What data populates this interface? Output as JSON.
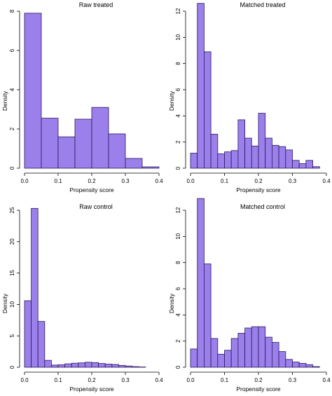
{
  "colors": {
    "bar_fill": "#9b7fea",
    "bar_stroke": "#2a1a5e",
    "axis": "#000000"
  },
  "chart_data": [
    {
      "type": "bar",
      "title": "Raw treated",
      "xlabel": "Propensity score",
      "ylabel": "Density",
      "xlim": [
        0,
        0.4
      ],
      "ylim": [
        0,
        8
      ],
      "xticks": [
        "0.0",
        "0.1",
        "0.2",
        "0.3",
        "0.4"
      ],
      "yticks": [
        "0",
        "2",
        "4",
        "6",
        "8"
      ],
      "bin_width": 0.05,
      "bin_starts": [
        0.0,
        0.05,
        0.1,
        0.15,
        0.2,
        0.25,
        0.3,
        0.35
      ],
      "values": [
        7.9,
        2.55,
        1.6,
        2.5,
        3.1,
        1.75,
        0.5,
        0.07
      ]
    },
    {
      "type": "bar",
      "title": "Matched treated",
      "xlabel": "Propensity score",
      "ylabel": "Density",
      "xlim": [
        0,
        0.4
      ],
      "ylim": [
        0,
        12
      ],
      "xticks": [
        "0.0",
        "0.1",
        "0.2",
        "0.3",
        "0.4"
      ],
      "yticks": [
        "0",
        "2",
        "4",
        "6",
        "8",
        "10",
        "12"
      ],
      "bin_width": 0.02,
      "bin_starts": [
        0.0,
        0.02,
        0.04,
        0.06,
        0.08,
        0.1,
        0.12,
        0.14,
        0.16,
        0.18,
        0.2,
        0.22,
        0.24,
        0.26,
        0.28,
        0.3,
        0.32,
        0.34,
        0.36
      ],
      "values": [
        1.15,
        12.6,
        8.9,
        2.6,
        1.1,
        1.25,
        1.35,
        3.7,
        2.3,
        1.7,
        4.2,
        2.3,
        1.75,
        1.65,
        1.4,
        0.6,
        0.35,
        0.6,
        0.12
      ]
    },
    {
      "type": "bar",
      "title": "Raw control",
      "xlabel": "Propensity score",
      "ylabel": "Density",
      "xlim": [
        0,
        0.4
      ],
      "ylim": [
        0,
        25
      ],
      "xticks": [
        "0.0",
        "0.1",
        "0.2",
        "0.3",
        "0.4"
      ],
      "yticks": [
        "0",
        "5",
        "10",
        "15",
        "20",
        "25"
      ],
      "bin_width": 0.02,
      "bin_starts": [
        0.0,
        0.02,
        0.04,
        0.06,
        0.08,
        0.1,
        0.12,
        0.14,
        0.16,
        0.18,
        0.2,
        0.22,
        0.24,
        0.26,
        0.28,
        0.3,
        0.32,
        0.34
      ],
      "values": [
        10.6,
        25.3,
        7.3,
        1.1,
        0.35,
        0.4,
        0.55,
        0.65,
        0.7,
        0.8,
        0.75,
        0.6,
        0.5,
        0.45,
        0.3,
        0.2,
        0.1,
        0.05
      ]
    },
    {
      "type": "bar",
      "title": "Matched control",
      "xlabel": "Propensity score",
      "ylabel": "Density",
      "xlim": [
        0,
        0.4
      ],
      "ylim": [
        0,
        12
      ],
      "xticks": [
        "0.0",
        "0.1",
        "0.2",
        "0.3",
        "0.4"
      ],
      "yticks": [
        "0",
        "2",
        "4",
        "6",
        "8",
        "10",
        "12"
      ],
      "bin_width": 0.02,
      "bin_starts": [
        0.0,
        0.02,
        0.04,
        0.06,
        0.08,
        0.1,
        0.12,
        0.14,
        0.16,
        0.18,
        0.2,
        0.22,
        0.24,
        0.26,
        0.28,
        0.3,
        0.32,
        0.34,
        0.36
      ],
      "values": [
        1.4,
        12.9,
        7.9,
        2.2,
        1.0,
        1.3,
        2.2,
        2.6,
        3.0,
        3.1,
        3.1,
        2.3,
        1.9,
        1.2,
        0.6,
        0.4,
        0.3,
        0.2,
        0.05
      ]
    }
  ]
}
